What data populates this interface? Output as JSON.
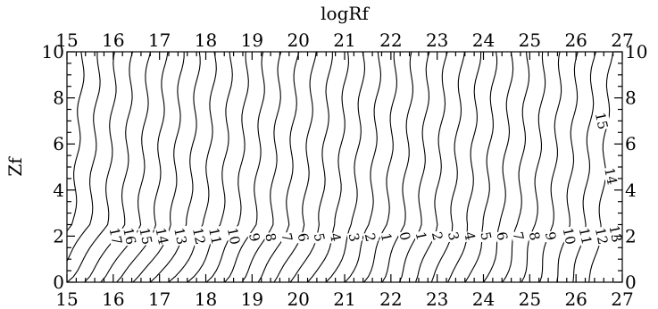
{
  "chart_data": {
    "type": "contour",
    "xlabel": "logRf",
    "ylabel": "Zf",
    "xlim": [
      15,
      27
    ],
    "ylim": [
      0,
      10
    ],
    "x_ticks": [
      15,
      16,
      17,
      18,
      19,
      20,
      21,
      22,
      23,
      24,
      25,
      26,
      27
    ],
    "y_ticks": [
      0,
      2,
      4,
      6,
      8,
      10
    ],
    "x_tick_labels": [
      "15",
      "16",
      "17",
      "18",
      "19",
      "20",
      "21",
      "22",
      "23",
      "24",
      "25",
      "26",
      "27"
    ],
    "y_tick_labels": [
      "0",
      "2",
      "4",
      "6",
      "8",
      "10"
    ],
    "ticks_mirrored": true,
    "grid": false,
    "contour_levels": [
      -17,
      -16,
      -15,
      -14,
      -13,
      -12,
      -11,
      -10,
      -9,
      -8,
      -7,
      -6,
      -5,
      -4,
      -3,
      -2,
      -1,
      0,
      1,
      2,
      3,
      4,
      5,
      6,
      7,
      8,
      9,
      10,
      11,
      12,
      13,
      14,
      15
    ],
    "contour_labels": [
      {
        "text": "17",
        "x": 16.05,
        "y": 2.0
      },
      {
        "text": "16",
        "x": 16.35,
        "y": 2.0
      },
      {
        "text": "15",
        "x": 16.7,
        "y": 2.0
      },
      {
        "text": "14",
        "x": 17.05,
        "y": 2.0
      },
      {
        "text": "13",
        "x": 17.45,
        "y": 2.0
      },
      {
        "text": "12",
        "x": 17.85,
        "y": 2.0
      },
      {
        "text": "11",
        "x": 18.2,
        "y": 2.0
      },
      {
        "text": "10",
        "x": 18.6,
        "y": 2.0
      },
      {
        "text": "9",
        "x": 19.05,
        "y": 1.95
      },
      {
        "text": "8",
        "x": 19.4,
        "y": 1.95
      },
      {
        "text": "7",
        "x": 19.75,
        "y": 1.95
      },
      {
        "text": "6",
        "x": 20.1,
        "y": 1.95
      },
      {
        "text": "5",
        "x": 20.45,
        "y": 1.95
      },
      {
        "text": "4",
        "x": 20.8,
        "y": 1.95
      },
      {
        "text": "3",
        "x": 21.2,
        "y": 1.95
      },
      {
        "text": "2",
        "x": 21.55,
        "y": 1.95
      },
      {
        "text": "1",
        "x": 21.9,
        "y": 1.95
      },
      {
        "text": "0",
        "x": 22.3,
        "y": 2.0
      },
      {
        "text": "1",
        "x": 22.65,
        "y": 2.0
      },
      {
        "text": "2",
        "x": 23.0,
        "y": 2.0
      },
      {
        "text": "3",
        "x": 23.35,
        "y": 2.0
      },
      {
        "text": "4",
        "x": 23.7,
        "y": 2.0
      },
      {
        "text": "5",
        "x": 24.05,
        "y": 2.0
      },
      {
        "text": "6",
        "x": 24.4,
        "y": 2.0
      },
      {
        "text": "7",
        "x": 24.75,
        "y": 2.0
      },
      {
        "text": "8",
        "x": 25.1,
        "y": 2.0
      },
      {
        "text": "9",
        "x": 25.45,
        "y": 2.0
      },
      {
        "text": "10",
        "x": 25.85,
        "y": 2.0
      },
      {
        "text": "11",
        "x": 26.2,
        "y": 2.0
      },
      {
        "text": "12",
        "x": 26.55,
        "y": 2.0
      },
      {
        "text": "13",
        "x": 26.85,
        "y": 2.1
      },
      {
        "text": "14",
        "x": 26.75,
        "y": 4.6
      },
      {
        "text": "15",
        "x": 26.55,
        "y": 7.0
      }
    ]
  }
}
